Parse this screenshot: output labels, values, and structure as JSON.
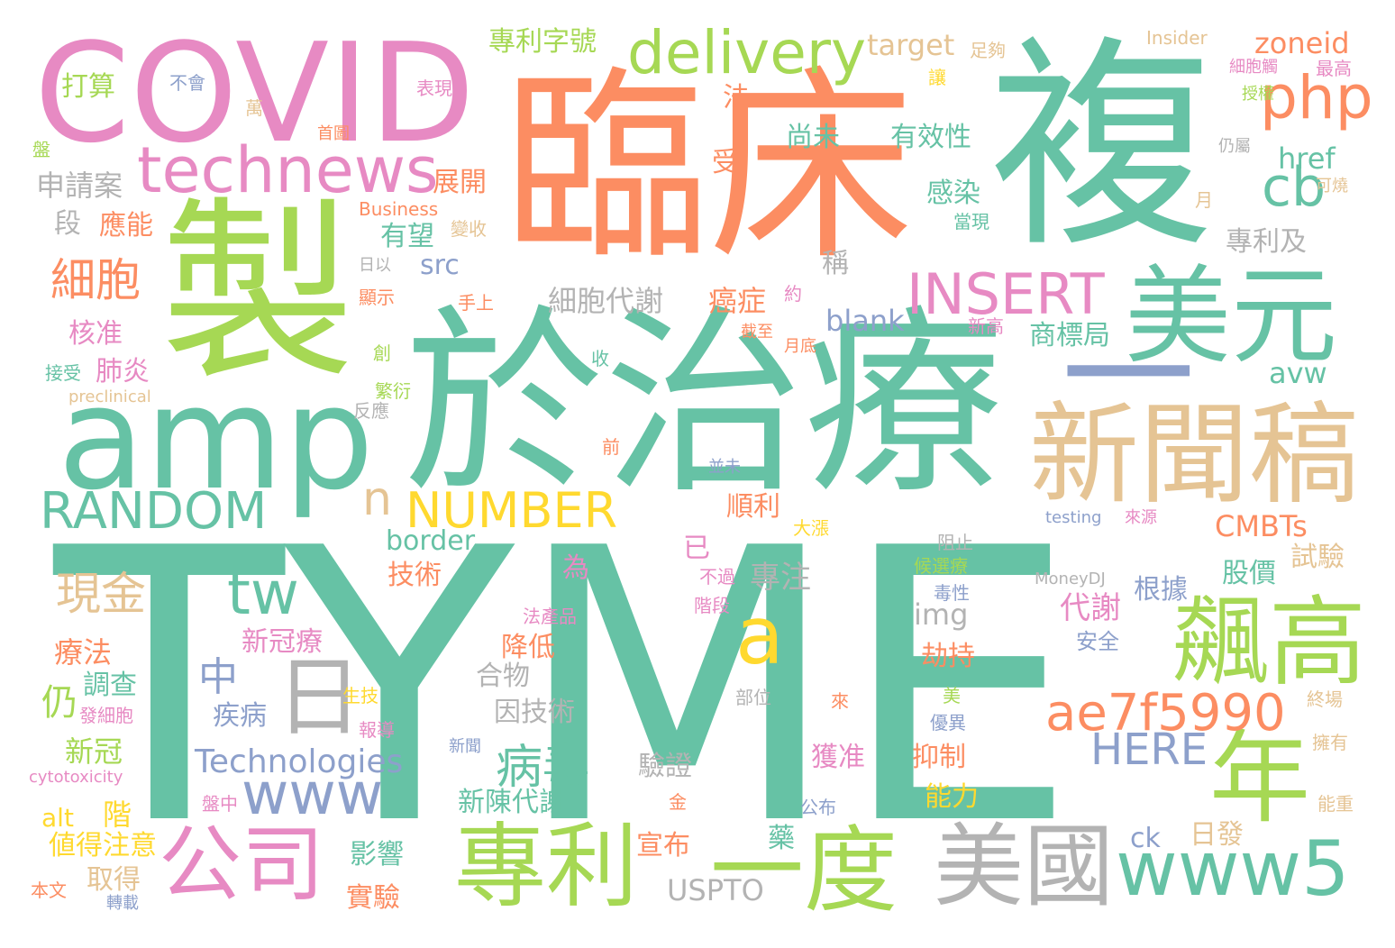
{
  "palette": {
    "teal": "#66c2a5",
    "orange": "#fc8d62",
    "blue": "#8da0cb",
    "pink": "#e78ac3",
    "green": "#a6d854",
    "yellow": "#ffd92f",
    "tan": "#e5c494",
    "gray": "#b3b3b3"
  },
  "words": [
    {
      "text": "TYME",
      "color": "teal"
    },
    {
      "text": "於治療",
      "color": "teal"
    },
    {
      "text": "臨床",
      "color": "orange"
    },
    {
      "text": "複",
      "color": "teal"
    },
    {
      "text": "製",
      "color": "green"
    },
    {
      "text": "COVID",
      "color": "pink"
    },
    {
      "text": "amp",
      "color": "teal"
    },
    {
      "text": "新聞稿",
      "color": "tan"
    },
    {
      "text": "美元",
      "color": "teal"
    },
    {
      "text": "一",
      "color": "blue"
    },
    {
      "text": "飆高",
      "color": "green"
    },
    {
      "text": "年",
      "color": "green"
    },
    {
      "text": "專利",
      "color": "green"
    },
    {
      "text": "一度",
      "color": "green"
    },
    {
      "text": "美國",
      "color": "gray"
    },
    {
      "text": "公司",
      "color": "pink"
    },
    {
      "text": "www5",
      "color": "teal"
    },
    {
      "text": "technews",
      "color": "pink"
    },
    {
      "text": "delivery",
      "color": "green"
    },
    {
      "text": "php",
      "color": "orange"
    },
    {
      "text": "cb",
      "color": "teal"
    },
    {
      "text": "INSERT",
      "color": "pink"
    },
    {
      "text": "RANDOM",
      "color": "teal"
    },
    {
      "text": "NUMBER",
      "color": "yellow"
    },
    {
      "text": "ae7f5990",
      "color": "orange"
    },
    {
      "text": "日",
      "color": "gray"
    },
    {
      "text": "a",
      "color": "yellow"
    },
    {
      "text": "tw",
      "color": "teal"
    },
    {
      "text": "www",
      "color": "blue"
    },
    {
      "text": "n",
      "color": "tan"
    },
    {
      "text": "HERE",
      "color": "blue"
    },
    {
      "text": "Technologies",
      "color": "blue"
    },
    {
      "text": "病毒",
      "color": "teal"
    },
    {
      "text": "細胞",
      "color": "orange"
    },
    {
      "text": "現金",
      "color": "tan"
    },
    {
      "text": "中",
      "color": "blue"
    },
    {
      "text": "仍",
      "color": "green"
    },
    {
      "text": "專利字號",
      "color": "green"
    },
    {
      "text": "target",
      "color": "tan"
    },
    {
      "text": "zoneid",
      "color": "orange"
    },
    {
      "text": "Insider",
      "color": "tan"
    },
    {
      "text": "足夠",
      "color": "tan"
    },
    {
      "text": "細胞觸",
      "color": "pink"
    },
    {
      "text": "最高",
      "color": "pink"
    },
    {
      "text": "授權",
      "color": "green"
    },
    {
      "text": "仍屬",
      "color": "gray"
    },
    {
      "text": "href",
      "color": "teal"
    },
    {
      "text": "可燒",
      "color": "tan"
    },
    {
      "text": "月",
      "color": "tan"
    },
    {
      "text": "專利及",
      "color": "gray"
    },
    {
      "text": "有效性",
      "color": "teal"
    },
    {
      "text": "尚未",
      "color": "teal"
    },
    {
      "text": "法",
      "color": "orange"
    },
    {
      "text": "受",
      "color": "orange"
    },
    {
      "text": "感染",
      "color": "teal"
    },
    {
      "text": "當現",
      "color": "teal"
    },
    {
      "text": "稱",
      "color": "gray"
    },
    {
      "text": "blank",
      "color": "blue"
    },
    {
      "text": "商標局",
      "color": "teal"
    },
    {
      "text": "avw",
      "color": "teal"
    },
    {
      "text": "癌症",
      "color": "orange"
    },
    {
      "text": "細胞代謝",
      "color": "gray"
    },
    {
      "text": "有望",
      "color": "teal"
    },
    {
      "text": "src",
      "color": "blue"
    },
    {
      "text": "展開",
      "color": "orange"
    },
    {
      "text": "申請案",
      "color": "gray"
    },
    {
      "text": "打算",
      "color": "green"
    },
    {
      "text": "不會",
      "color": "blue"
    },
    {
      "text": "表現",
      "color": "pink"
    },
    {
      "text": "萬",
      "color": "tan"
    },
    {
      "text": "首圖",
      "color": "orange"
    },
    {
      "text": "讓",
      "color": "yellow"
    },
    {
      "text": "盤",
      "color": "green"
    },
    {
      "text": "段",
      "color": "gray"
    },
    {
      "text": "應能",
      "color": "orange"
    },
    {
      "text": "Business",
      "color": "orange"
    },
    {
      "text": "變收",
      "color": "tan"
    },
    {
      "text": "日以",
      "color": "gray"
    },
    {
      "text": "顯示",
      "color": "orange"
    },
    {
      "text": "手上",
      "color": "orange"
    },
    {
      "text": "約",
      "color": "pink"
    },
    {
      "text": "截至",
      "color": "orange"
    },
    {
      "text": "月底",
      "color": "orange"
    },
    {
      "text": "新高",
      "color": "pink"
    },
    {
      "text": "創",
      "color": "green"
    },
    {
      "text": "收",
      "color": "teal"
    },
    {
      "text": "繁衍",
      "color": "green"
    },
    {
      "text": "反應",
      "color": "gray"
    },
    {
      "text": "核准",
      "color": "pink"
    },
    {
      "text": "肺炎",
      "color": "pink"
    },
    {
      "text": "接受",
      "color": "teal"
    },
    {
      "text": "preclinical",
      "color": "tan"
    },
    {
      "text": "前",
      "color": "orange"
    },
    {
      "text": "並未",
      "color": "blue"
    },
    {
      "text": "testing",
      "color": "blue"
    },
    {
      "text": "來源",
      "color": "pink"
    },
    {
      "text": "CMBTs",
      "color": "orange"
    },
    {
      "text": "border",
      "color": "teal"
    },
    {
      "text": "順利",
      "color": "orange"
    },
    {
      "text": "大漲",
      "color": "yellow"
    },
    {
      "text": "已",
      "color": "pink"
    },
    {
      "text": "阻止",
      "color": "gray"
    },
    {
      "text": "候選療",
      "color": "green"
    },
    {
      "text": "試驗",
      "color": "tan"
    },
    {
      "text": "股價",
      "color": "teal"
    },
    {
      "text": "MoneyDJ",
      "color": "gray"
    },
    {
      "text": "根據",
      "color": "blue"
    },
    {
      "text": "毒性",
      "color": "blue"
    },
    {
      "text": "技術",
      "color": "orange"
    },
    {
      "text": "專注",
      "color": "gray"
    },
    {
      "text": "為",
      "color": "pink"
    },
    {
      "text": "不過",
      "color": "pink"
    },
    {
      "text": "階段",
      "color": "pink"
    },
    {
      "text": "法產品",
      "color": "pink"
    },
    {
      "text": "img",
      "color": "gray"
    },
    {
      "text": "代謝",
      "color": "pink"
    },
    {
      "text": "安全",
      "color": "blue"
    },
    {
      "text": "降低",
      "color": "orange"
    },
    {
      "text": "新冠療",
      "color": "pink"
    },
    {
      "text": "合物",
      "color": "gray"
    },
    {
      "text": "療法",
      "color": "orange"
    },
    {
      "text": "調查",
      "color": "teal"
    },
    {
      "text": "發細胞",
      "color": "pink"
    },
    {
      "text": "生技",
      "color": "yellow"
    },
    {
      "text": "報導",
      "color": "pink"
    },
    {
      "text": "部位",
      "color": "gray"
    },
    {
      "text": "來",
      "color": "orange"
    },
    {
      "text": "劫持",
      "color": "orange"
    },
    {
      "text": "美",
      "color": "green"
    },
    {
      "text": "優異",
      "color": "blue"
    },
    {
      "text": "終場",
      "color": "tan"
    },
    {
      "text": "因技術",
      "color": "gray"
    },
    {
      "text": "疾病",
      "color": "blue"
    },
    {
      "text": "新冠",
      "color": "green"
    },
    {
      "text": "cytotoxicity",
      "color": "pink"
    },
    {
      "text": "新聞",
      "color": "blue"
    },
    {
      "text": "獲准",
      "color": "pink"
    },
    {
      "text": "抑制",
      "color": "orange"
    },
    {
      "text": "擁有",
      "color": "tan"
    },
    {
      "text": "驗證",
      "color": "gray"
    },
    {
      "text": "能力",
      "color": "yellow"
    },
    {
      "text": "能重",
      "color": "tan"
    },
    {
      "text": "公布",
      "color": "blue"
    },
    {
      "text": "金",
      "color": "orange"
    },
    {
      "text": "盤中",
      "color": "pink"
    },
    {
      "text": "新陳代謝",
      "color": "teal"
    },
    {
      "text": "階",
      "color": "yellow"
    },
    {
      "text": "alt",
      "color": "yellow"
    },
    {
      "text": "値得注意",
      "color": "yellow"
    },
    {
      "text": "藥",
      "color": "teal"
    },
    {
      "text": "宣布",
      "color": "orange"
    },
    {
      "text": "ck",
      "color": "blue"
    },
    {
      "text": "日發",
      "color": "tan"
    },
    {
      "text": "影響",
      "color": "teal"
    },
    {
      "text": "取得",
      "color": "tan"
    },
    {
      "text": "本文",
      "color": "orange"
    },
    {
      "text": "轉載",
      "color": "blue"
    },
    {
      "text": "實驗",
      "color": "orange"
    },
    {
      "text": "USPTO",
      "color": "gray"
    }
  ]
}
